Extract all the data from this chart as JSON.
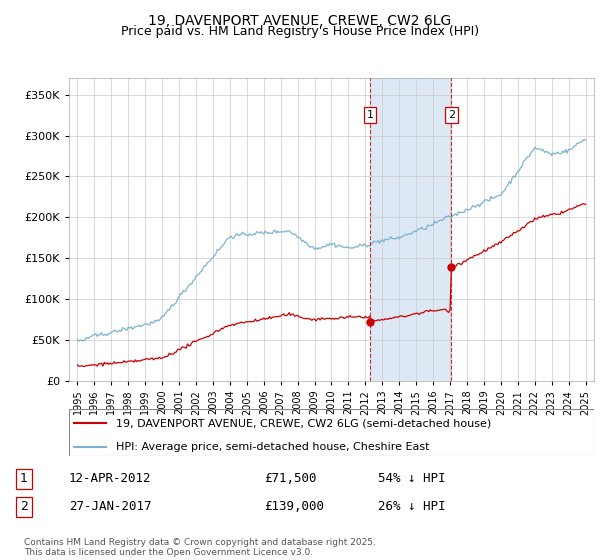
{
  "title": "19, DAVENPORT AVENUE, CREWE, CW2 6LG",
  "subtitle": "Price paid vs. HM Land Registry's House Price Index (HPI)",
  "legend_line1": "19, DAVENPORT AVENUE, CREWE, CW2 6LG (semi-detached house)",
  "legend_line2": "HPI: Average price, semi-detached house, Cheshire East",
  "footnote": "Contains HM Land Registry data © Crown copyright and database right 2025.\nThis data is licensed under the Open Government Licence v3.0.",
  "transaction1_label": "1",
  "transaction1_date": "12-APR-2012",
  "transaction1_price": "£71,500",
  "transaction1_hpi": "54% ↓ HPI",
  "transaction1_x": 2012.28,
  "transaction1_y": 71500,
  "transaction2_label": "2",
  "transaction2_date": "27-JAN-2017",
  "transaction2_price": "£139,000",
  "transaction2_hpi": "26% ↓ HPI",
  "transaction2_x": 2017.07,
  "transaction2_y": 139000,
  "hpi_color": "#7ab3d4",
  "price_color": "#cc0000",
  "vline_color": "#cc0000",
  "highlight_color": "#dce9f5",
  "ylim": [
    0,
    370000
  ],
  "yticks": [
    0,
    50000,
    100000,
    150000,
    200000,
    250000,
    300000,
    350000
  ],
  "xlim": [
    1994.5,
    2025.5
  ],
  "xticks": [
    1995,
    1996,
    1997,
    1998,
    1999,
    2000,
    2001,
    2002,
    2003,
    2004,
    2005,
    2006,
    2007,
    2008,
    2009,
    2010,
    2011,
    2012,
    2013,
    2014,
    2015,
    2016,
    2017,
    2018,
    2019,
    2020,
    2021,
    2022,
    2023,
    2024,
    2025
  ]
}
